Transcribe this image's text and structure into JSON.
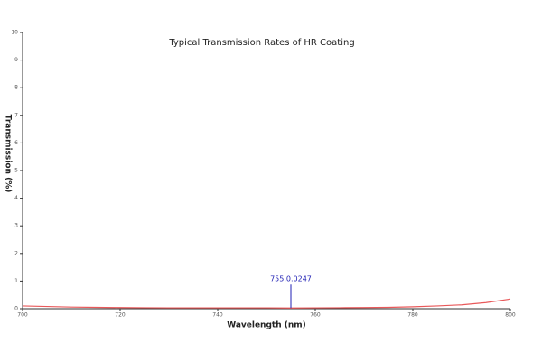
{
  "chart_data": {
    "type": "line",
    "title": "Typical Transmission Rates of HR Coating",
    "x_label": "Wavelength (nm)",
    "y_label": "Transmission (%)",
    "x": [
      700,
      705,
      710,
      715,
      720,
      725,
      730,
      735,
      740,
      745,
      750,
      755,
      760,
      765,
      770,
      775,
      780,
      785,
      790,
      795,
      800
    ],
    "series": [
      {
        "color": "#e8595a",
        "values": [
          0.1,
          0.08,
          0.06,
          0.05,
          0.04,
          0.035,
          0.03,
          0.03,
          0.03,
          0.03,
          0.03,
          0.0247,
          0.03,
          0.035,
          0.04,
          0.05,
          0.07,
          0.1,
          0.14,
          0.22,
          0.35
        ]
      }
    ],
    "xlim": [
      700,
      800
    ],
    "xticks": [
      700,
      720,
      740,
      760,
      780,
      800
    ],
    "ylim": [
      0,
      10
    ],
    "yticks": [
      0,
      1,
      2,
      3,
      4,
      5,
      6,
      7,
      8,
      9,
      10
    ],
    "annotations": [
      {
        "text": "755,0.0247",
        "x": 755,
        "y": 0.0247,
        "color": "#1f1fb4"
      }
    ]
  }
}
